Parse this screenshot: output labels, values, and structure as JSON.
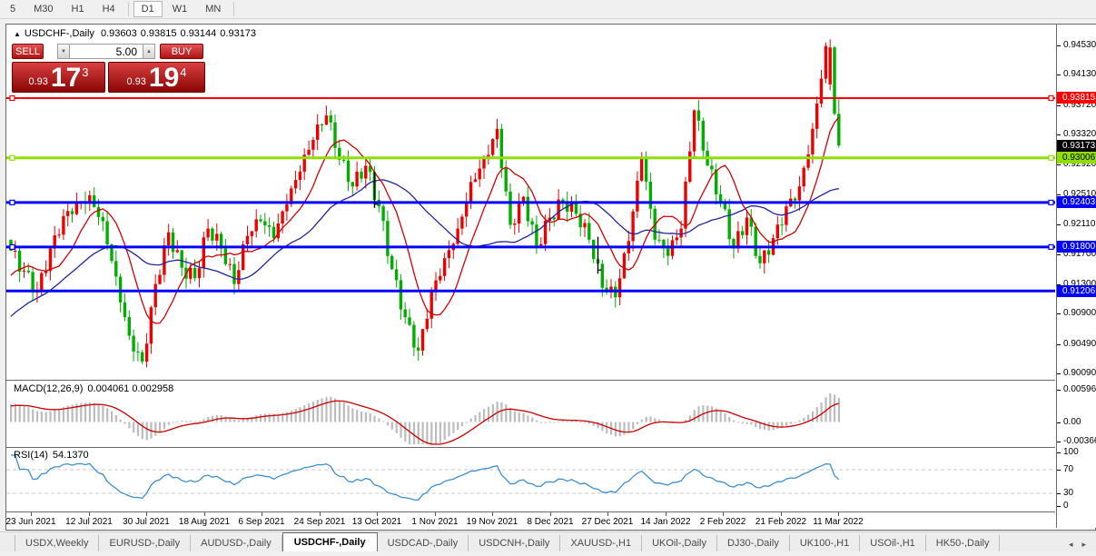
{
  "toolbar": {
    "timeframes": [
      "5",
      "M30",
      "H1",
      "H4",
      "D1",
      "W1",
      "MN"
    ],
    "active": "D1"
  },
  "title": {
    "arrow": "▲",
    "symbol": "USDCHF-,Daily",
    "open": "0.93603",
    "high": "0.93815",
    "low": "0.93144",
    "close": "0.93173"
  },
  "trade_panel": {
    "sell_label": "SELL",
    "buy_label": "BUY",
    "volume": "5.00",
    "down_icon": "▼",
    "up_icon": "▲",
    "sell_price": {
      "prefix": "0.93",
      "big": "17",
      "sup": "3"
    },
    "buy_price": {
      "prefix": "0.93",
      "big": "19",
      "sup": "4"
    }
  },
  "price_axis": {
    "ticks": [
      {
        "label": "0.94530",
        "price": 0.9453
      },
      {
        "label": "0.94130",
        "price": 0.9413
      },
      {
        "label": "0.93720",
        "price": 0.9372
      },
      {
        "label": "0.93320",
        "price": 0.9332
      },
      {
        "label": "0.92920",
        "price": 0.9292
      },
      {
        "label": "0.92510",
        "price": 0.9251
      },
      {
        "label": "0.92110",
        "price": 0.9211
      },
      {
        "label": "0.91700",
        "price": 0.917
      },
      {
        "label": "0.91300",
        "price": 0.913
      },
      {
        "label": "0.90900",
        "price": 0.909
      },
      {
        "label": "0.90490",
        "price": 0.9049
      },
      {
        "label": "0.90090",
        "price": 0.9009
      }
    ],
    "badges": [
      {
        "label": "0.93815",
        "price": 0.93815,
        "bg": "#ff0000",
        "fg": "#ffffff"
      },
      {
        "label": "0.93173",
        "price": 0.93173,
        "bg": "#000000",
        "fg": "#ffffff"
      },
      {
        "label": "0.93006",
        "price": 0.93006,
        "bg": "#8ddf00",
        "fg": "#000000"
      },
      {
        "label": "0.92403",
        "price": 0.92403,
        "bg": "#0000ff",
        "fg": "#ffffff"
      },
      {
        "label": "0.91800",
        "price": 0.918,
        "bg": "#0000ff",
        "fg": "#ffffff"
      },
      {
        "label": "0.91206",
        "price": 0.91206,
        "bg": "#0000ff",
        "fg": "#ffffff"
      }
    ]
  },
  "hlines": [
    {
      "price": 0.93815,
      "color": "#ff0000",
      "thickness": 2,
      "handles": true
    },
    {
      "price": 0.93006,
      "color": "#8ddf00",
      "thickness": 3,
      "handles": true
    },
    {
      "price": 0.92403,
      "color": "#0000ff",
      "thickness": 3,
      "handles": true
    },
    {
      "price": 0.918,
      "color": "#0000ff",
      "thickness": 3,
      "handles": true
    },
    {
      "price": 0.91206,
      "color": "#0000ff",
      "thickness": 3,
      "handles": false
    }
  ],
  "macd": {
    "name": "MACD(12,26,9)",
    "values": "0.004061 0.002958",
    "axis": [
      {
        "label": "0.005963",
        "value": 0.005963
      },
      {
        "label": "0.00",
        "value": 0
      },
      {
        "label": "-0.00366",
        "value": -0.00366
      }
    ]
  },
  "rsi": {
    "name": "RSI(14)",
    "value": "54.1370",
    "axis": [
      {
        "label": "100",
        "value": 100
      },
      {
        "label": "70",
        "value": 70
      },
      {
        "label": "30",
        "value": 30
      },
      {
        "label": "0",
        "value": 0
      }
    ],
    "levels": [
      70,
      30
    ]
  },
  "dates": [
    "23 Jun 2021",
    "12 Jul 2021",
    "30 Jul 2021",
    "18 Aug 2021",
    "6 Sep 2021",
    "24 Sep 2021",
    "13 Oct 2021",
    "1 Nov 2021",
    "19 Nov 2021",
    "8 Dec 2021",
    "27 Dec 2021",
    "14 Jan 2022",
    "2 Feb 2022",
    "21 Feb 2022",
    "11 Mar 2022"
  ],
  "tabs": [
    "USDX,Weekly",
    "EURUSD-,Daily",
    "AUDUSD-,Daily",
    "USDCHF-,Daily",
    "USDCAD-,Daily",
    "USDCNH-,Daily",
    "XAUUSD-,H1",
    "UKOil-,Daily",
    "DJ30-,Daily",
    "UK100-,H1",
    "USOil-,H1",
    "HK50-,Daily"
  ],
  "active_tab": "USDCHF-,Daily",
  "tab_nav": {
    "left_icon": "◂",
    "right_icon": "▸"
  },
  "chart_data": {
    "type": "candlestick",
    "symbol": "USDCHF-",
    "timeframe": "Daily",
    "last_bar_ohlc": {
      "open": 0.93603,
      "high": 0.93815,
      "low": 0.93144,
      "close": 0.93173
    },
    "visible_range": {
      "first_label": "23 Jun 2021",
      "last_label": "11 Mar 2022",
      "price_min": 0.9009,
      "price_max": 0.9453
    },
    "first_open": 0.919,
    "candles_per_anchor": 3,
    "anchor_closes": [
      0.9175,
      0.9148,
      0.912,
      0.9178,
      0.9222,
      0.924,
      0.925,
      0.9215,
      0.914,
      0.906,
      0.9025,
      0.913,
      0.92,
      0.9152,
      0.9138,
      0.9205,
      0.9178,
      0.913,
      0.9195,
      0.9215,
      0.9192,
      0.9238,
      0.9282,
      0.9325,
      0.9358,
      0.9298,
      0.9262,
      0.929,
      0.9235,
      0.915,
      0.9085,
      0.904,
      0.912,
      0.9165,
      0.9205,
      0.9268,
      0.93,
      0.934,
      0.921,
      0.9248,
      0.9182,
      0.922,
      0.9242,
      0.9225,
      0.919,
      0.9125,
      0.9112,
      0.9188,
      0.93,
      0.919,
      0.9168,
      0.9205,
      0.9365,
      0.929,
      0.9242,
      0.9178,
      0.922,
      0.9158,
      0.9192,
      0.9235,
      0.9262,
      0.934,
      0.9452,
      0.93173
    ],
    "final_candles": [
      [
        0.94,
        0.9461,
        0.9392,
        0.945
      ],
      [
        0.945,
        0.9452,
        0.9358,
        0.93603
      ],
      [
        0.93603,
        0.93815,
        0.93144,
        0.93173
      ]
    ],
    "black_bars": [
      {
        "index": 83,
        "high": 0.9282,
        "low": 0.9233
      },
      {
        "index": 134,
        "high": 0.9194,
        "low": 0.9144
      }
    ],
    "indicator_values": {
      "macd": 0.004061,
      "macd_signal": 0.002958,
      "rsi": 54.137
    },
    "colors": {
      "bull": "#ed0000",
      "bear": "#00ad00",
      "ma_fast": "#d40000",
      "ma_slow": "#23239c",
      "macd_hist": "#bcbcbc",
      "macd_signal": "#cc0000",
      "rsi_line": "#3d8fd4",
      "level_dash": "#c8c8c8"
    }
  }
}
